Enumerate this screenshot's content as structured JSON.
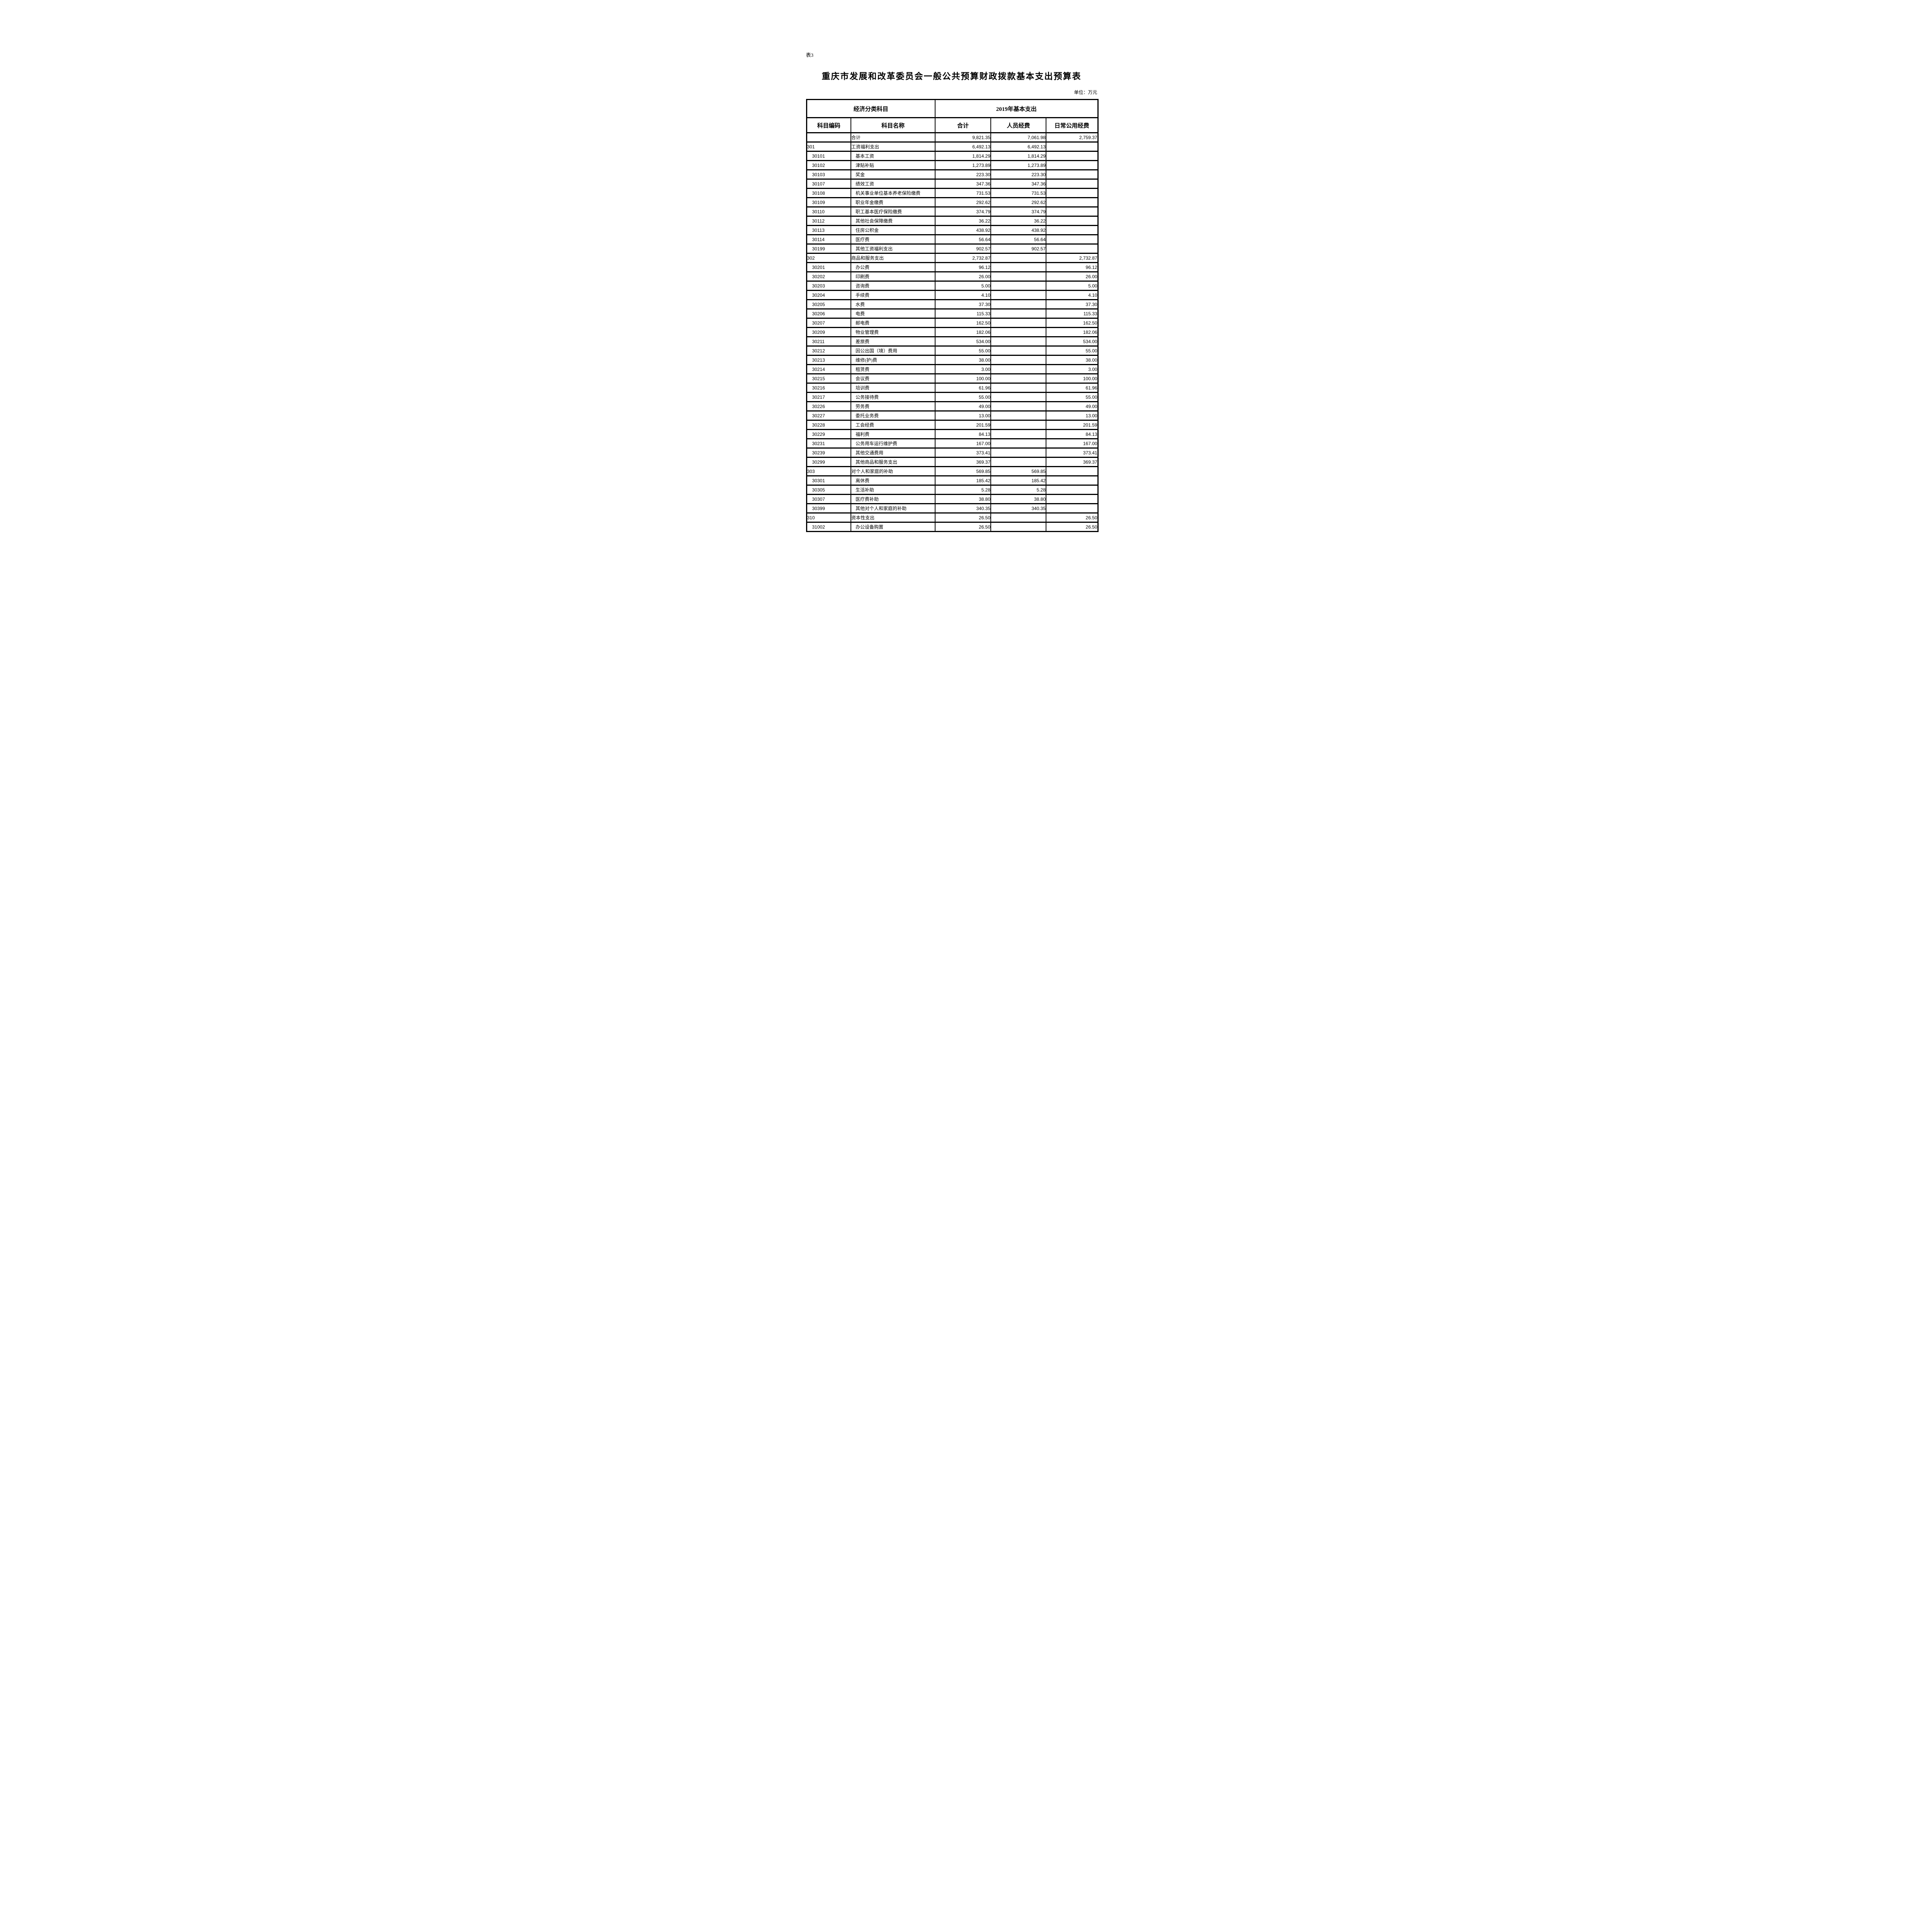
{
  "page": {
    "table_label": "表3",
    "title": "重庆市发展和改革委员会一般公共预算财政拨款基本支出预算表",
    "unit_note": "单位：万元"
  },
  "table": {
    "header": {
      "economic_class": "经济分类科目",
      "year_group": "2019年基本支出",
      "col_code": "科目编码",
      "col_name": "科目名称",
      "col_total": "合计",
      "col_personnel": "人员经费",
      "col_daily": "日常公用经费"
    },
    "rows": [
      {
        "code": "",
        "name": "合计",
        "total": "9,821.35",
        "personnel": "7,061.98",
        "daily": "2,759.37",
        "level": "parent"
      },
      {
        "code": "301",
        "name": "工资福利支出",
        "total": "6,492.13",
        "personnel": "6,492.13",
        "daily": "",
        "level": "parent"
      },
      {
        "code": "30101",
        "name": "基本工资",
        "total": "1,814.29",
        "personnel": "1,814.29",
        "daily": "",
        "level": "child"
      },
      {
        "code": "30102",
        "name": "津贴补贴",
        "total": "1,273.89",
        "personnel": "1,273.89",
        "daily": "",
        "level": "child"
      },
      {
        "code": "30103",
        "name": "奖金",
        "total": "223.30",
        "personnel": "223.30",
        "daily": "",
        "level": "child"
      },
      {
        "code": "30107",
        "name": "绩效工资",
        "total": "347.36",
        "personnel": "347.36",
        "daily": "",
        "level": "child"
      },
      {
        "code": "30108",
        "name": "机关事业单位基本养老保险缴费",
        "total": "731.53",
        "personnel": "731.53",
        "daily": "",
        "level": "child"
      },
      {
        "code": "30109",
        "name": "职业年金缴费",
        "total": "292.62",
        "personnel": "292.62",
        "daily": "",
        "level": "child"
      },
      {
        "code": "30110",
        "name": "职工基本医疗保险缴费",
        "total": "374.79",
        "personnel": "374.79",
        "daily": "",
        "level": "child"
      },
      {
        "code": "30112",
        "name": "其他社会保障缴费",
        "total": "36.22",
        "personnel": "36.22",
        "daily": "",
        "level": "child"
      },
      {
        "code": "30113",
        "name": "住房公积金",
        "total": "438.92",
        "personnel": "438.92",
        "daily": "",
        "level": "child"
      },
      {
        "code": "30114",
        "name": "医疗费",
        "total": "56.64",
        "personnel": "56.64",
        "daily": "",
        "level": "child"
      },
      {
        "code": "30199",
        "name": "其他工资福利支出",
        "total": "902.57",
        "personnel": "902.57",
        "daily": "",
        "level": "child"
      },
      {
        "code": "302",
        "name": "商品和服务支出",
        "total": "2,732.87",
        "personnel": "",
        "daily": "2,732.87",
        "level": "parent"
      },
      {
        "code": "30201",
        "name": "办公费",
        "total": "96.12",
        "personnel": "",
        "daily": "96.12",
        "level": "child"
      },
      {
        "code": "30202",
        "name": "印刷费",
        "total": "26.00",
        "personnel": "",
        "daily": "26.00",
        "level": "child"
      },
      {
        "code": "30203",
        "name": "咨询费",
        "total": "5.00",
        "personnel": "",
        "daily": "5.00",
        "level": "child"
      },
      {
        "code": "30204",
        "name": "手续费",
        "total": "4.10",
        "personnel": "",
        "daily": "4.10",
        "level": "child"
      },
      {
        "code": "30205",
        "name": "水费",
        "total": "37.30",
        "personnel": "",
        "daily": "37.30",
        "level": "child"
      },
      {
        "code": "30206",
        "name": "电费",
        "total": "115.33",
        "personnel": "",
        "daily": "115.33",
        "level": "child"
      },
      {
        "code": "30207",
        "name": "邮电费",
        "total": "162.50",
        "personnel": "",
        "daily": "162.50",
        "level": "child"
      },
      {
        "code": "30209",
        "name": "物业管理费",
        "total": "182.06",
        "personnel": "",
        "daily": "182.06",
        "level": "child"
      },
      {
        "code": "30211",
        "name": "差旅费",
        "total": "534.00",
        "personnel": "",
        "daily": "534.00",
        "level": "child"
      },
      {
        "code": "30212",
        "name": "因公出国（境）费用",
        "total": "55.00",
        "personnel": "",
        "daily": "55.00",
        "level": "child"
      },
      {
        "code": "30213",
        "name": "维修(护)费",
        "total": "38.00",
        "personnel": "",
        "daily": "38.00",
        "level": "child"
      },
      {
        "code": "30214",
        "name": "租赁费",
        "total": "3.00",
        "personnel": "",
        "daily": "3.00",
        "level": "child"
      },
      {
        "code": "30215",
        "name": "会议费",
        "total": "100.00",
        "personnel": "",
        "daily": "100.00",
        "level": "child"
      },
      {
        "code": "30216",
        "name": "培训费",
        "total": "61.96",
        "personnel": "",
        "daily": "61.96",
        "level": "child"
      },
      {
        "code": "30217",
        "name": "公务接待费",
        "total": "55.00",
        "personnel": "",
        "daily": "55.00",
        "level": "child"
      },
      {
        "code": "30226",
        "name": "劳务费",
        "total": "49.00",
        "personnel": "",
        "daily": "49.00",
        "level": "child"
      },
      {
        "code": "30227",
        "name": "委托业务费",
        "total": "13.00",
        "personnel": "",
        "daily": "13.00",
        "level": "child"
      },
      {
        "code": "30228",
        "name": "工会经费",
        "total": "201.59",
        "personnel": "",
        "daily": "201.59",
        "level": "child"
      },
      {
        "code": "30229",
        "name": "福利费",
        "total": "84.13",
        "personnel": "",
        "daily": "84.13",
        "level": "child"
      },
      {
        "code": "30231",
        "name": "公务用车运行维护费",
        "total": "167.00",
        "personnel": "",
        "daily": "167.00",
        "level": "child"
      },
      {
        "code": "30239",
        "name": "其他交通费用",
        "total": "373.41",
        "personnel": "",
        "daily": "373.41",
        "level": "child"
      },
      {
        "code": "30299",
        "name": "其他商品和服务支出",
        "total": "369.37",
        "personnel": "",
        "daily": "369.37",
        "level": "child"
      },
      {
        "code": "303",
        "name": "对个人和家庭的补助",
        "total": "569.85",
        "personnel": "569.85",
        "daily": "",
        "level": "parent"
      },
      {
        "code": "30301",
        "name": "离休费",
        "total": "185.42",
        "personnel": "185.42",
        "daily": "",
        "level": "child"
      },
      {
        "code": "30305",
        "name": "生活补助",
        "total": "5.28",
        "personnel": "5.28",
        "daily": "",
        "level": "child"
      },
      {
        "code": "30307",
        "name": "医疗费补助",
        "total": "38.80",
        "personnel": "38.80",
        "daily": "",
        "level": "child"
      },
      {
        "code": "30399",
        "name": "其他对个人和家庭的补助",
        "total": "340.35",
        "personnel": "340.35",
        "daily": "",
        "level": "child"
      },
      {
        "code": "310",
        "name": "资本性支出",
        "total": "26.50",
        "personnel": "",
        "daily": "26.50",
        "level": "parent"
      },
      {
        "code": "31002",
        "name": "办公设备购置",
        "total": "26.50",
        "personnel": "",
        "daily": "26.50",
        "level": "child"
      }
    ]
  }
}
